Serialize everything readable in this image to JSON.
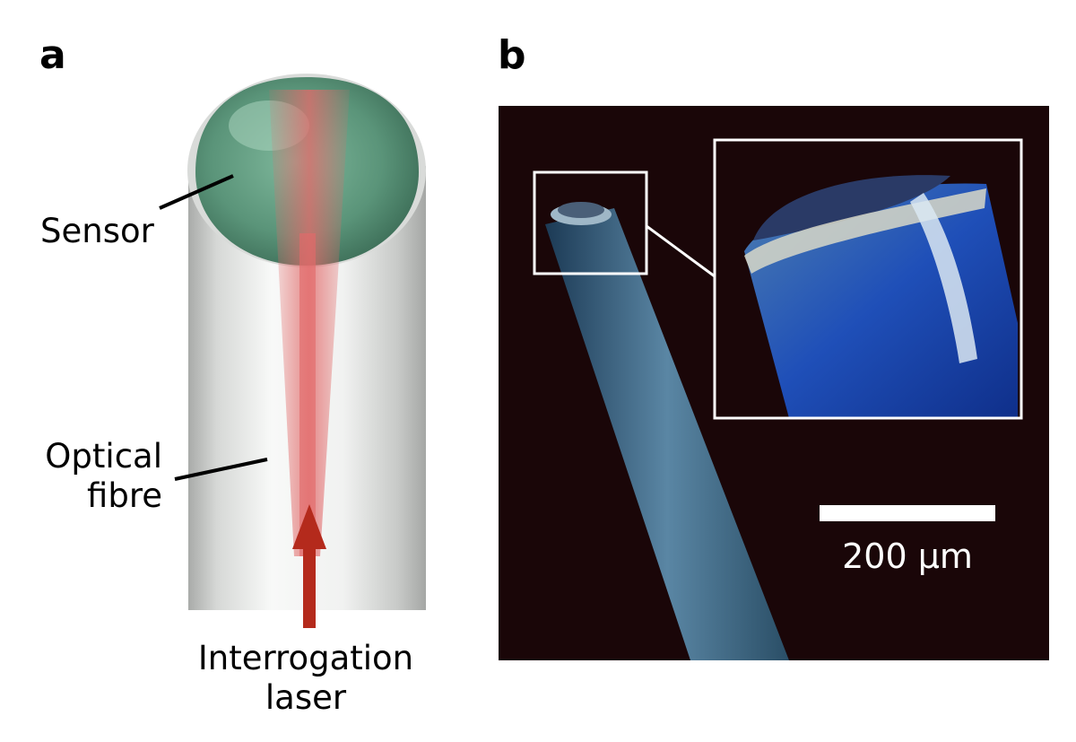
{
  "panels": {
    "a": {
      "letter": "a",
      "labels": {
        "sensor": "Sensor",
        "fibre_line1": "Optical",
        "fibre_line2": "fibre",
        "laser_line1": "Interrogation",
        "laser_line2": "laser"
      }
    },
    "b": {
      "letter": "b",
      "scale_bar": {
        "text": "200 μm"
      }
    }
  },
  "colors": {
    "sensor_dome": "#5f9a80",
    "fibre_body": "#e4e6e4",
    "laser_beam": "#e26a6a",
    "laser_arrow": "#b42a1c",
    "photo_background": "#1a0608",
    "photo_fibre": "#3f6f8f",
    "inset_blue": "#1f4fb8",
    "scale_bar": "#ffffff"
  }
}
